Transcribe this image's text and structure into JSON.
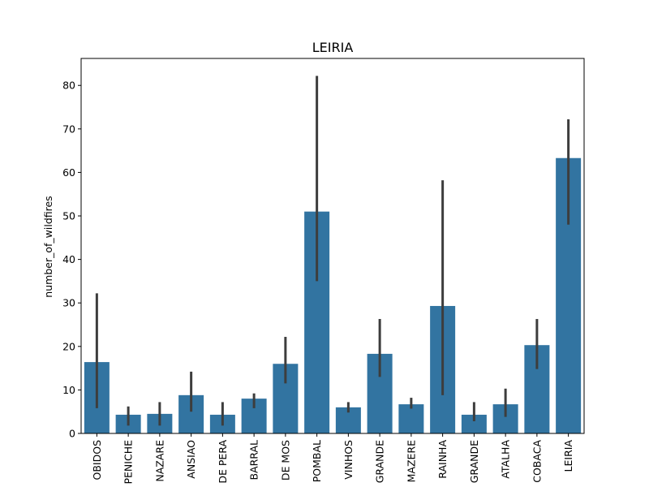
{
  "chart_data": {
    "type": "bar",
    "title": "LEIRIA",
    "xlabel": "",
    "ylabel": "number_of_wildfires",
    "ylim": [
      0,
      86.2
    ],
    "yticks": [
      0,
      10,
      20,
      30,
      40,
      50,
      60,
      70,
      80
    ],
    "grid": false,
    "bar_color": "#3274a1",
    "errorbar_color": "#3d3d3d",
    "categories": [
      "OBIDOS",
      "PENICHE",
      "NAZARE",
      "ANSIAO",
      "DE PERA",
      "BARRAL",
      "DE MOS",
      "POMBAL",
      "VINHOS",
      "GRANDE",
      "MAZERE",
      "RAINHA",
      "GRANDE",
      "ATALHA",
      "COBACA",
      "LEIRIA"
    ],
    "values": [
      16.4,
      4.3,
      4.5,
      8.8,
      4.3,
      8.0,
      16.0,
      51.0,
      6.0,
      18.3,
      6.7,
      29.3,
      4.3,
      6.7,
      20.3,
      63.3
    ],
    "error_low": [
      5.8,
      1.8,
      1.8,
      5.0,
      1.8,
      5.8,
      11.5,
      35.0,
      4.8,
      13.0,
      5.7,
      8.8,
      2.8,
      3.8,
      14.8,
      48.0
    ],
    "error_high": [
      32.2,
      6.2,
      7.2,
      14.2,
      7.2,
      9.2,
      22.2,
      82.2,
      7.2,
      26.3,
      8.2,
      58.2,
      7.2,
      10.3,
      26.3,
      72.2
    ]
  }
}
